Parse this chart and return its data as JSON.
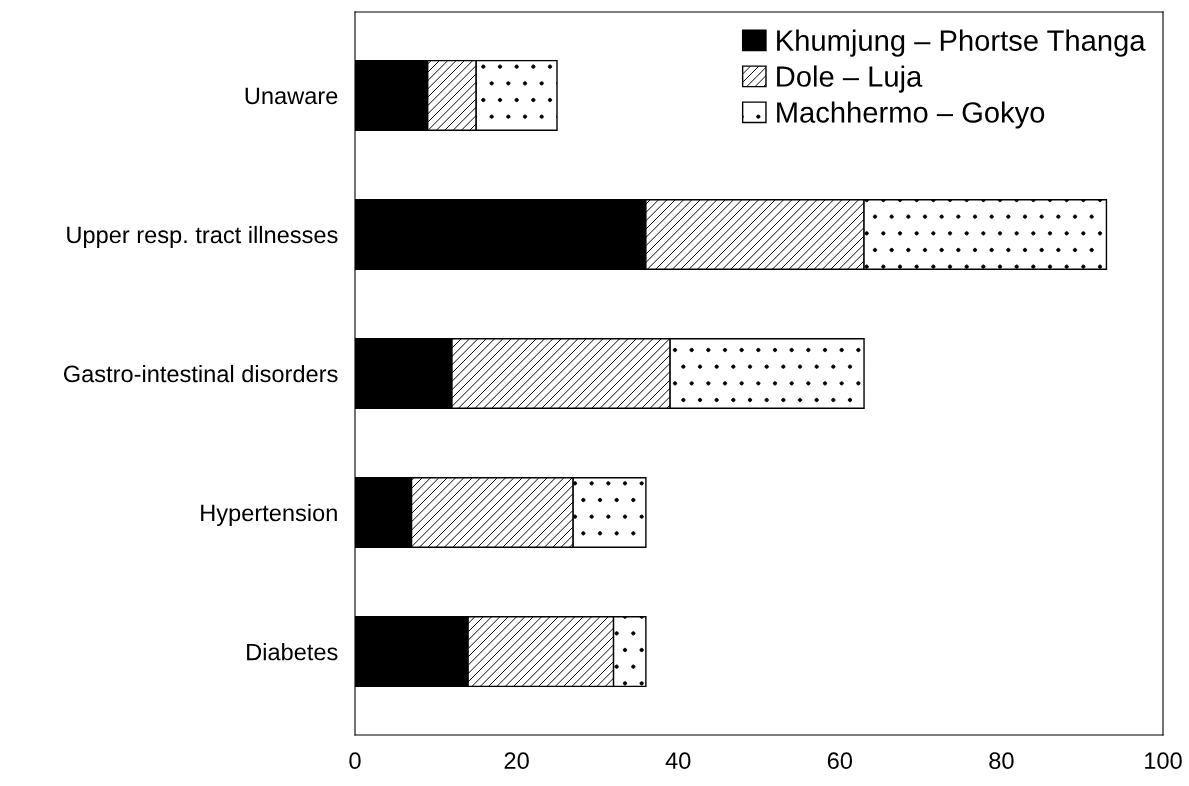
{
  "chart_data": {
    "type": "bar",
    "orientation": "horizontal",
    "stacked": true,
    "categories": [
      "Unaware",
      "Upper resp. tract illnesses",
      "Gastro-intestinal disorders",
      "Hypertension",
      "Diabetes"
    ],
    "series": [
      {
        "name": "Khumjung – Phortse Thanga",
        "color": "#000000",
        "values": [
          9,
          36,
          12,
          7,
          14
        ]
      },
      {
        "name": "Dole – Luja",
        "color": "#ffffff",
        "values": [
          6,
          27,
          27,
          20,
          18
        ]
      },
      {
        "name": "Machhermo – Gokyo",
        "color": "#ffffff",
        "values": [
          10,
          30,
          24,
          9,
          4
        ]
      }
    ],
    "xlim": [
      0,
      100
    ],
    "xticks": [
      0,
      20,
      40,
      60,
      80,
      100
    ],
    "grid": false,
    "legend": "top right"
  }
}
